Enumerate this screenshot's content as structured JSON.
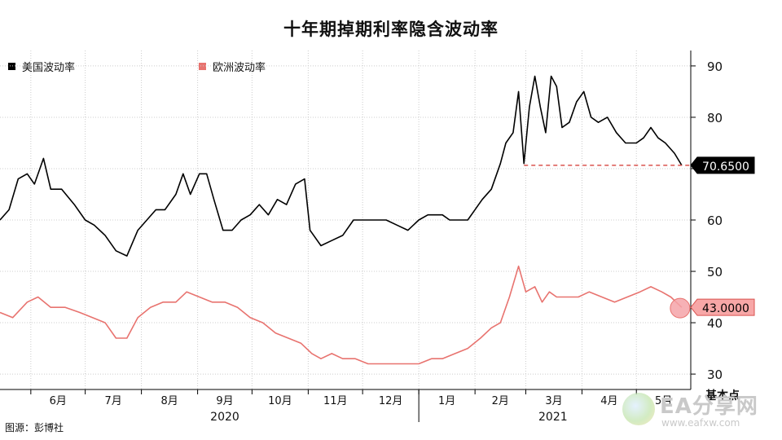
{
  "page": {
    "title": "十年期掉期利率隐含波动率",
    "source": "图源：彭博社"
  },
  "watermark": {
    "title": "EA分享网",
    "url": "www.eafxw.com"
  },
  "colors": {
    "us": "#000000",
    "eu": "#e8736f",
    "grid": "#cccccc",
    "ref_line": "#d9534f"
  },
  "chart_data": {
    "type": "line",
    "title": "十年期掉期利率隐含波动率",
    "ylabel": "基本点",
    "ylim": [
      27,
      93
    ],
    "yticks": [
      30,
      40,
      50,
      60,
      70,
      80,
      90
    ],
    "x_start": "2020-05-15",
    "x_end": "2021-05-31",
    "x_tick_labels": [
      {
        "date": "2020-06-01",
        "label": "6月"
      },
      {
        "date": "2020-07-01",
        "label": "7月"
      },
      {
        "date": "2020-08-01",
        "label": "8月"
      },
      {
        "date": "2020-09-01",
        "label": "9月"
      },
      {
        "date": "2020-10-01",
        "label": "10月"
      },
      {
        "date": "2020-11-01",
        "label": "11月"
      },
      {
        "date": "2020-12-01",
        "label": "12月"
      },
      {
        "date": "2021-01-01",
        "label": "1月"
      },
      {
        "date": "2021-02-01",
        "label": "2月"
      },
      {
        "date": "2021-03-01",
        "label": "3月"
      },
      {
        "date": "2021-04-01",
        "label": "4月"
      },
      {
        "date": "2021-05-01",
        "label": "5月"
      }
    ],
    "year_labels": [
      {
        "date": "2020-09-01",
        "label": "2020"
      },
      {
        "date": "2021-03-01",
        "label": "2021"
      }
    ],
    "legend": "top-left",
    "grid": true,
    "series": [
      {
        "name": "美国波动率",
        "last_value_label": "70.6500",
        "reference_line": 70.65,
        "points": [
          [
            "2020-05-15",
            60
          ],
          [
            "2020-05-20",
            62
          ],
          [
            "2020-05-25",
            68
          ],
          [
            "2020-05-30",
            69
          ],
          [
            "2020-06-03",
            67
          ],
          [
            "2020-06-08",
            72
          ],
          [
            "2020-06-12",
            66
          ],
          [
            "2020-06-18",
            66
          ],
          [
            "2020-06-25",
            63
          ],
          [
            "2020-07-01",
            60
          ],
          [
            "2020-07-06",
            59
          ],
          [
            "2020-07-12",
            57
          ],
          [
            "2020-07-18",
            54
          ],
          [
            "2020-07-24",
            53
          ],
          [
            "2020-07-30",
            58
          ],
          [
            "2020-08-04",
            60
          ],
          [
            "2020-08-09",
            62
          ],
          [
            "2020-08-14",
            62
          ],
          [
            "2020-08-20",
            65
          ],
          [
            "2020-08-24",
            69
          ],
          [
            "2020-08-28",
            65
          ],
          [
            "2020-09-02",
            69
          ],
          [
            "2020-09-06",
            69
          ],
          [
            "2020-09-10",
            64
          ],
          [
            "2020-09-15",
            58
          ],
          [
            "2020-09-20",
            58
          ],
          [
            "2020-09-25",
            60
          ],
          [
            "2020-09-30",
            61
          ],
          [
            "2020-10-05",
            63
          ],
          [
            "2020-10-10",
            61
          ],
          [
            "2020-10-15",
            64
          ],
          [
            "2020-10-20",
            63
          ],
          [
            "2020-10-25",
            67
          ],
          [
            "2020-10-30",
            68
          ],
          [
            "2020-11-02",
            58
          ],
          [
            "2020-11-08",
            55
          ],
          [
            "2020-11-14",
            56
          ],
          [
            "2020-11-20",
            57
          ],
          [
            "2020-11-26",
            60
          ],
          [
            "2020-12-02",
            60
          ],
          [
            "2020-12-08",
            60
          ],
          [
            "2020-12-14",
            60
          ],
          [
            "2020-12-20",
            59
          ],
          [
            "2020-12-26",
            58
          ],
          [
            "2021-01-01",
            60
          ],
          [
            "2021-01-06",
            61
          ],
          [
            "2021-01-10",
            61
          ],
          [
            "2021-01-14",
            61
          ],
          [
            "2021-01-18",
            60
          ],
          [
            "2021-01-22",
            60
          ],
          [
            "2021-01-28",
            60
          ],
          [
            "2021-02-01",
            62
          ],
          [
            "2021-02-05",
            64
          ],
          [
            "2021-02-10",
            66
          ],
          [
            "2021-02-15",
            71
          ],
          [
            "2021-02-18",
            75
          ],
          [
            "2021-02-22",
            77
          ],
          [
            "2021-02-25",
            85
          ],
          [
            "2021-02-28",
            71
          ],
          [
            "2021-03-03",
            82
          ],
          [
            "2021-03-06",
            88
          ],
          [
            "2021-03-09",
            82
          ],
          [
            "2021-03-12",
            77
          ],
          [
            "2021-03-15",
            88
          ],
          [
            "2021-03-18",
            86
          ],
          [
            "2021-03-21",
            78
          ],
          [
            "2021-03-25",
            79
          ],
          [
            "2021-03-29",
            83
          ],
          [
            "2021-04-02",
            85
          ],
          [
            "2021-04-06",
            80
          ],
          [
            "2021-04-10",
            79
          ],
          [
            "2021-04-15",
            80
          ],
          [
            "2021-04-20",
            77
          ],
          [
            "2021-04-25",
            75
          ],
          [
            "2021-05-01",
            75
          ],
          [
            "2021-05-05",
            76
          ],
          [
            "2021-05-09",
            78
          ],
          [
            "2021-05-13",
            76
          ],
          [
            "2021-05-17",
            75
          ],
          [
            "2021-05-22",
            73
          ],
          [
            "2021-05-26",
            70.65
          ]
        ]
      },
      {
        "name": "欧洲波动率",
        "last_value_label": "43.0000",
        "points": [
          [
            "2020-05-15",
            42
          ],
          [
            "2020-05-22",
            41
          ],
          [
            "2020-05-30",
            44
          ],
          [
            "2020-06-05",
            45
          ],
          [
            "2020-06-12",
            43
          ],
          [
            "2020-06-20",
            43
          ],
          [
            "2020-06-28",
            42
          ],
          [
            "2020-07-05",
            41
          ],
          [
            "2020-07-12",
            40
          ],
          [
            "2020-07-18",
            37
          ],
          [
            "2020-07-24",
            37
          ],
          [
            "2020-07-30",
            41
          ],
          [
            "2020-08-06",
            43
          ],
          [
            "2020-08-13",
            44
          ],
          [
            "2020-08-20",
            44
          ],
          [
            "2020-08-26",
            46
          ],
          [
            "2020-09-02",
            45
          ],
          [
            "2020-09-09",
            44
          ],
          [
            "2020-09-16",
            44
          ],
          [
            "2020-09-23",
            43
          ],
          [
            "2020-09-30",
            41
          ],
          [
            "2020-10-07",
            40
          ],
          [
            "2020-10-14",
            38
          ],
          [
            "2020-10-21",
            37
          ],
          [
            "2020-10-28",
            36
          ],
          [
            "2020-11-03",
            34
          ],
          [
            "2020-11-08",
            33
          ],
          [
            "2020-11-14",
            34
          ],
          [
            "2020-11-20",
            33
          ],
          [
            "2020-11-27",
            33
          ],
          [
            "2020-12-04",
            32
          ],
          [
            "2020-12-11",
            32
          ],
          [
            "2020-12-18",
            32
          ],
          [
            "2020-12-25",
            32
          ],
          [
            "2021-01-01",
            32
          ],
          [
            "2021-01-08",
            33
          ],
          [
            "2021-01-14",
            33
          ],
          [
            "2021-01-21",
            34
          ],
          [
            "2021-01-28",
            35
          ],
          [
            "2021-02-04",
            37
          ],
          [
            "2021-02-10",
            39
          ],
          [
            "2021-02-15",
            40
          ],
          [
            "2021-02-20",
            45
          ],
          [
            "2021-02-25",
            51
          ],
          [
            "2021-03-01",
            46
          ],
          [
            "2021-03-06",
            47
          ],
          [
            "2021-03-10",
            44
          ],
          [
            "2021-03-14",
            46
          ],
          [
            "2021-03-18",
            45
          ],
          [
            "2021-03-24",
            45
          ],
          [
            "2021-03-30",
            45
          ],
          [
            "2021-04-05",
            46
          ],
          [
            "2021-04-12",
            45
          ],
          [
            "2021-04-19",
            44
          ],
          [
            "2021-04-26",
            45
          ],
          [
            "2021-05-03",
            46
          ],
          [
            "2021-05-09",
            47
          ],
          [
            "2021-05-15",
            46
          ],
          [
            "2021-05-20",
            45
          ],
          [
            "2021-05-26",
            43
          ]
        ]
      }
    ]
  }
}
